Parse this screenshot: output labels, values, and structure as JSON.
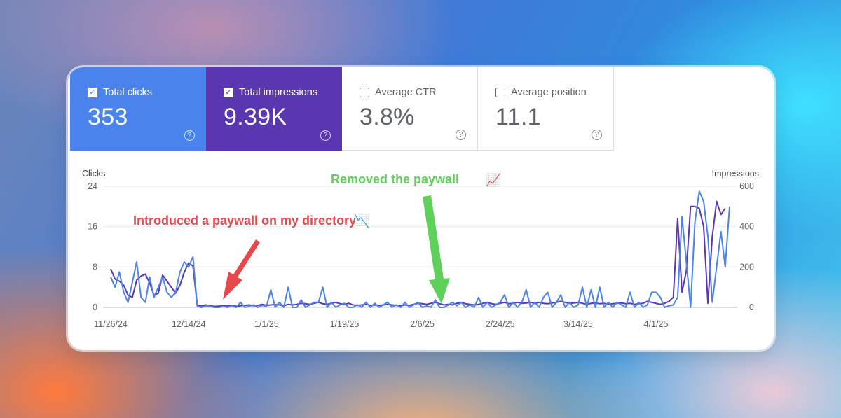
{
  "metrics": [
    {
      "label": "Total clicks",
      "value": "353",
      "checked": true
    },
    {
      "label": "Total impressions",
      "value": "9.39K",
      "checked": true
    },
    {
      "label": "Average CTR",
      "value": "3.8%",
      "checked": false
    },
    {
      "label": "Average position",
      "value": "11.1",
      "checked": false
    }
  ],
  "icons": {
    "checkbox": "checkbox-icon",
    "help": "help-circle-icon",
    "chart_down": "chart-decreasing-emoji",
    "chart_up": "chart-increasing-emoji"
  },
  "colors": {
    "clicks": "#4a83ec",
    "impressions": "#5a37b0",
    "annotation_red": "#e5484d",
    "annotation_green": "#5fd05a"
  },
  "chart_data": {
    "type": "line",
    "left_axis_label": "Clicks",
    "right_axis_label": "Impressions",
    "y_left_ticks": [
      "0",
      "8",
      "16",
      "24"
    ],
    "y_right_ticks": [
      "0",
      "200",
      "400",
      "600"
    ],
    "ylim_left": [
      0,
      24
    ],
    "ylim_right": [
      0,
      600
    ],
    "x_ticks": [
      "11/26/24",
      "12/14/24",
      "1/1/25",
      "1/19/25",
      "2/6/25",
      "2/24/25",
      "3/14/25",
      "4/1/25"
    ],
    "grid": true,
    "series": [
      {
        "name": "Clicks",
        "axis": "left",
        "color": "#4a83ec",
        "values": [
          6,
          4,
          7,
          3,
          1,
          5,
          9,
          2,
          1,
          6,
          2,
          4,
          6,
          3,
          2,
          3,
          7,
          9,
          8,
          10,
          0.2,
          0,
          0.3,
          0.2,
          0,
          0,
          0.2,
          0,
          0.3,
          0,
          1,
          0,
          0.2,
          0.5,
          0,
          0.4,
          0.2,
          3.5,
          0,
          1,
          0,
          4,
          0,
          0,
          1.5,
          0,
          0.5,
          1,
          1,
          4,
          0,
          1,
          0,
          0.5,
          0.8,
          0,
          0,
          0.5,
          0,
          1,
          0,
          0.8,
          0,
          0.5,
          1,
          0,
          0.5,
          0,
          1,
          0,
          0.5,
          1,
          0,
          0.3,
          0,
          1.5,
          0,
          0,
          0.5,
          1,
          0.3,
          1,
          0,
          0.5,
          0,
          2,
          0,
          1,
          0,
          0.5,
          1,
          2.5,
          0,
          1,
          0,
          1,
          3.5,
          0,
          1,
          0,
          2,
          3,
          0,
          1,
          2.5,
          0,
          1,
          0,
          0.5,
          4,
          0,
          3.5,
          0,
          4,
          0,
          1,
          0,
          1,
          0.5,
          0,
          3,
          0,
          1,
          0,
          0.5,
          3,
          3,
          2,
          0,
          0.3,
          0.5,
          2,
          18,
          9,
          0,
          17,
          23,
          21,
          14,
          1,
          8,
          15,
          8,
          20
        ]
      },
      {
        "name": "Impressions",
        "axis": "right",
        "color": "#5a37b0",
        "values": [
          190,
          140,
          130,
          110,
          60,
          50,
          135,
          155,
          165,
          120,
          60,
          70,
          160,
          130,
          100,
          70,
          110,
          175,
          220,
          205,
          10,
          8,
          12,
          8,
          5,
          6,
          10,
          8,
          10,
          6,
          8,
          10,
          12,
          8,
          10,
          15,
          10,
          12,
          14,
          12,
          8,
          15,
          12,
          15,
          20,
          18,
          15,
          20,
          25,
          18,
          15,
          20,
          25,
          18,
          15,
          20,
          12,
          10,
          12,
          15,
          10,
          12,
          10,
          12,
          15,
          12,
          10,
          8,
          12,
          10,
          15,
          20,
          18,
          15,
          20,
          25,
          18,
          12,
          15,
          12,
          20,
          25,
          18,
          15,
          12,
          15,
          20,
          25,
          18,
          15,
          20,
          25,
          18,
          20,
          25,
          20,
          22,
          25,
          20,
          25,
          20,
          18,
          22,
          25,
          30,
          25,
          20,
          22,
          25,
          20,
          15,
          20,
          22,
          18,
          20,
          15,
          18,
          20,
          22,
          18,
          20,
          15,
          18,
          20,
          30,
          25,
          20,
          15,
          20,
          30,
          50,
          440,
          75,
          180,
          500,
          500,
          490,
          400,
          20,
          350,
          525,
          460,
          490
        ]
      }
    ],
    "annotations": [
      {
        "text": "Introduced a paywall on my directory",
        "emoji": "📉",
        "color": "#e5484d"
      },
      {
        "text": "Removed the paywall",
        "emoji": "📈",
        "color": "#5fd05a"
      }
    ]
  }
}
